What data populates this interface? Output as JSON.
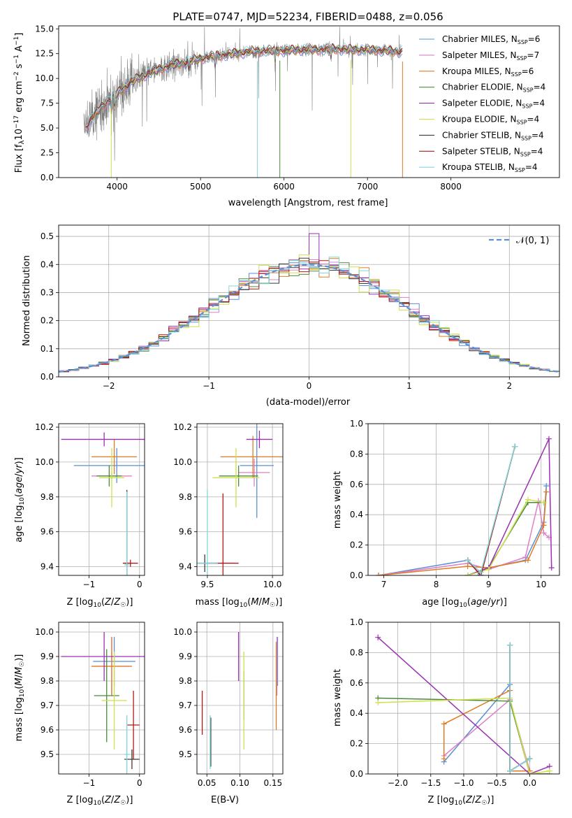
{
  "colors": {
    "Chabrier MILES": "#5b8fd6",
    "Salpeter MILES": "#e07fc7",
    "Kroupa MILES": "#e07b22",
    "Chabrier ELODIE": "#4b8a3c",
    "Salpeter ELODIE": "#9a30b0",
    "Kroupa ELODIE": "#cfe04a",
    "Chabrier STELIB": "#3a3a3a",
    "Salpeter STELIB": "#b01818",
    "Kroupa STELIB": "#7fd7dc",
    "data": "#808080",
    "normal": "#5b8fd6",
    "grid": "#b0b0b0"
  },
  "chart_data": [
    {
      "id": "spectrum",
      "type": "line",
      "title": "PLATE=0747, MJD=52234, FIBERID=0488, z=0.056",
      "xlabel": "wavelength [Angstrom, rest frame]",
      "ylabel": "Flux [f_λ 10^-17 erg cm^-2 s^-1 A^-1]",
      "xlim": [
        3300,
        9300
      ],
      "ylim": [
        0,
        15.3
      ],
      "xticks": [
        4000,
        5000,
        6000,
        7000,
        8000
      ],
      "xtick_labels": [
        "4000",
        "5000",
        "6000",
        "7000",
        "8000"
      ],
      "yticks": [
        0,
        2.5,
        5,
        7.5,
        10,
        12.5,
        15
      ],
      "ytick_labels": [
        "0.0",
        "2.5",
        "5.0",
        "7.5",
        "10.0",
        "12.5",
        "15.0"
      ],
      "grid": false,
      "legend_position": "right",
      "continuum": [
        [
          3600,
          4.8
        ],
        [
          3700,
          6.0
        ],
        [
          3800,
          7.0
        ],
        [
          3900,
          7.8
        ],
        [
          4000,
          8.5
        ],
        [
          4200,
          9.8
        ],
        [
          4400,
          10.6
        ],
        [
          4600,
          11.2
        ],
        [
          4800,
          11.6
        ],
        [
          5000,
          12.0
        ],
        [
          5200,
          12.3
        ],
        [
          5400,
          12.5
        ],
        [
          5600,
          12.7
        ],
        [
          5800,
          12.8
        ],
        [
          6000,
          12.8
        ],
        [
          6200,
          12.9
        ],
        [
          6400,
          12.9
        ],
        [
          6600,
          13.0
        ],
        [
          6800,
          12.9
        ],
        [
          7000,
          12.9
        ],
        [
          7200,
          12.8
        ],
        [
          7400,
          12.7
        ]
      ],
      "legend": [
        {
          "label": "Chabrier MILES",
          "nssp": "6",
          "color_key": "Chabrier MILES"
        },
        {
          "label": "Salpeter MILES",
          "nssp": "7",
          "color_key": "Salpeter MILES"
        },
        {
          "label": "Kroupa MILES",
          "nssp": "6",
          "color_key": "Kroupa MILES"
        },
        {
          "label": "Chabrier ELODIE",
          "nssp": "4",
          "color_key": "Chabrier ELODIE"
        },
        {
          "label": "Salpeter ELODIE",
          "nssp": "4",
          "color_key": "Salpeter ELODIE"
        },
        {
          "label": "Kroupa ELODIE",
          "nssp": "4",
          "color_key": "Kroupa ELODIE"
        },
        {
          "label": "Chabrier STELIB",
          "nssp": "4",
          "color_key": "Chabrier STELIB"
        },
        {
          "label": "Salpeter STELIB",
          "nssp": "4",
          "color_key": "Salpeter STELIB"
        },
        {
          "label": "Kroupa STELIB",
          "nssp": "4",
          "color_key": "Kroupa STELIB"
        }
      ]
    },
    {
      "id": "residuals",
      "type": "line",
      "xlabel": "(data-model)/error",
      "ylabel": "Normed distribution",
      "xlim": [
        -2.5,
        2.5
      ],
      "ylim": [
        0,
        0.54
      ],
      "xticks": [
        -2,
        -1,
        0,
        1,
        2
      ],
      "xtick_labels": [
        "−2",
        "−1",
        "0",
        "1",
        "2"
      ],
      "yticks": [
        0,
        0.1,
        0.2,
        0.3,
        0.4,
        0.5
      ],
      "ytick_labels": [
        "0.0",
        "0.1",
        "0.2",
        "0.3",
        "0.4",
        "0.5"
      ],
      "grid": true,
      "legend_position": "top-right",
      "legend": [
        {
          "label": "𝒩(0, 1)",
          "color_key": "normal"
        }
      ],
      "bin_width": 0.1,
      "peak_value": 0.399
    },
    {
      "id": "age_vs_Z",
      "type": "scatter",
      "xlabel": "Z [log10(Z/Z☉)]",
      "ylabel": "age [log10(age/yr)]",
      "xlim": [
        -1.6,
        0.1
      ],
      "ylim": [
        9.35,
        10.22
      ],
      "xticks": [
        -1,
        0
      ],
      "xtick_labels": [
        "−1",
        "0"
      ],
      "yticks": [
        9.4,
        9.6,
        9.8,
        10.0,
        10.2
      ],
      "ytick_labels": [
        "9.4",
        "9.6",
        "9.8",
        "10.0",
        "10.2"
      ],
      "grid": true,
      "points": [
        {
          "model": "Chabrier MILES",
          "x": -0.45,
          "xerr": 0.85,
          "y": 9.98,
          "yerr": 0.1
        },
        {
          "model": "Salpeter MILES",
          "x": -0.55,
          "xerr": 0.4,
          "y": 9.92,
          "yerr": 0.02
        },
        {
          "model": "Kroupa MILES",
          "x": -0.5,
          "xerr": 0.45,
          "y": 10.03,
          "yerr": 0.1
        },
        {
          "model": "Chabrier ELODIE",
          "x": -0.6,
          "xerr": 0.25,
          "y": 9.92,
          "yerr": 0.06
        },
        {
          "model": "Salpeter ELODIE",
          "x": -0.7,
          "xerr": 0.85,
          "y": 10.13,
          "yerr": 0.04
        },
        {
          "model": "Kroupa ELODIE",
          "x": -0.55,
          "xerr": 0.25,
          "y": 9.91,
          "yerr": 0.17
        },
        {
          "model": "Chabrier STELIB",
          "x": -0.25,
          "xerr": 0.05,
          "y": 9.42,
          "yerr": 0.42
        },
        {
          "model": "Salpeter STELIB",
          "x": -0.18,
          "xerr": 0.15,
          "y": 9.42,
          "yerr": 0.02
        },
        {
          "model": "Kroupa STELIB",
          "x": -0.25,
          "xerr": 0.05,
          "y": 9.41,
          "yerr": 0.42
        }
      ]
    },
    {
      "id": "age_vs_mass",
      "type": "scatter",
      "xlabel": "mass [log10(M/M☉)]",
      "xlim": [
        9.42,
        10.08
      ],
      "ylim": [
        9.35,
        10.22
      ],
      "xticks": [
        9.5,
        10.0
      ],
      "xtick_labels": [
        "9.5",
        "10.0"
      ],
      "yticks": [
        9.4,
        9.6,
        9.8,
        10.0,
        10.2
      ],
      "ytick_labels": [
        "9.4",
        "9.6",
        "9.8",
        "10.0",
        "10.2"
      ],
      "grid": true,
      "points": [
        {
          "model": "Chabrier MILES",
          "x": 9.88,
          "xerr": 0.13,
          "y": 9.98,
          "yerr": 0.3
        },
        {
          "model": "Salpeter MILES",
          "x": 9.86,
          "xerr": 0.12,
          "y": 9.94,
          "yerr": 0.08
        },
        {
          "model": "Kroupa MILES",
          "x": 9.85,
          "xerr": 0.25,
          "y": 10.03,
          "yerr": 0.12
        },
        {
          "model": "Chabrier ELODIE",
          "x": 9.74,
          "xerr": 0.15,
          "y": 9.92,
          "yerr": 0.06
        },
        {
          "model": "Salpeter ELODIE",
          "x": 9.9,
          "xerr": 0.1,
          "y": 10.13,
          "yerr": 0.05
        },
        {
          "model": "Kroupa ELODIE",
          "x": 9.72,
          "xerr": 0.18,
          "y": 9.91,
          "yerr": 0.17
        },
        {
          "model": "Chabrier STELIB",
          "x": 9.48,
          "xerr": 0.1,
          "y": 9.42,
          "yerr": 0.05
        },
        {
          "model": "Salpeter STELIB",
          "x": 9.62,
          "xerr": 0.12,
          "y": 9.42,
          "yerr": 0.4
        },
        {
          "model": "Kroupa STELIB",
          "x": 9.5,
          "xerr": 0.08,
          "y": 9.42,
          "yerr": 0.42
        }
      ]
    },
    {
      "id": "massweight_vs_age",
      "type": "line",
      "xlabel": "age  [log10(age/yr)]",
      "ylabel": "mass weight",
      "xlim": [
        6.7,
        10.35
      ],
      "ylim": [
        0,
        1.0
      ],
      "xticks": [
        7,
        8,
        9,
        10
      ],
      "xtick_labels": [
        "7",
        "8",
        "9",
        "10"
      ],
      "yticks": [
        0,
        0.2,
        0.4,
        0.6,
        0.8,
        1.0
      ],
      "ytick_labels": [
        "0.0",
        "0.2",
        "0.4",
        "0.6",
        "0.8",
        "1.0"
      ],
      "grid": true,
      "series": [
        {
          "model": "Chabrier MILES",
          "x": [
            6.9,
            8.6,
            8.8,
            9.0,
            9.7,
            10.05,
            10.1
          ],
          "y": [
            0.0,
            0.1,
            0.02,
            0.05,
            0.1,
            0.35,
            0.59
          ]
        },
        {
          "model": "Salpeter MILES",
          "x": [
            6.9,
            8.6,
            9.0,
            9.7,
            9.95,
            10.05,
            10.15
          ],
          "y": [
            0.0,
            0.08,
            0.04,
            0.12,
            0.49,
            0.28,
            0.25
          ]
        },
        {
          "model": "Kroupa MILES",
          "x": [
            6.9,
            8.6,
            9.0,
            9.75,
            10.05,
            10.1
          ],
          "y": [
            0.0,
            0.06,
            0.05,
            0.1,
            0.33,
            0.55
          ]
        },
        {
          "model": "Chabrier ELODIE",
          "x": [
            8.6,
            9.0,
            9.75,
            10.05
          ],
          "y": [
            0.0,
            0.05,
            0.48,
            0.48
          ]
        },
        {
          "model": "Salpeter ELODIE",
          "x": [
            8.6,
            9.0,
            10.15,
            10.2
          ],
          "y": [
            0.0,
            0.05,
            0.9,
            0.05
          ]
        },
        {
          "model": "Kroupa ELODIE",
          "x": [
            8.6,
            9.0,
            9.75,
            10.05
          ],
          "y": [
            0.0,
            0.04,
            0.5,
            0.48
          ]
        },
        {
          "model": "Chabrier STELIB",
          "x": [
            8.6,
            8.85,
            9.5
          ],
          "y": [
            0.1,
            0.0,
            0.85
          ]
        },
        {
          "model": "Salpeter STELIB",
          "x": [
            8.6,
            8.85,
            9.5
          ],
          "y": [
            0.1,
            0.0,
            0.85
          ]
        },
        {
          "model": "Kroupa STELIB",
          "x": [
            8.6,
            8.85,
            9.5
          ],
          "y": [
            0.1,
            0.02,
            0.85
          ]
        }
      ]
    },
    {
      "id": "mass_vs_Z",
      "type": "scatter",
      "xlabel": "Z [log10(Z/Z☉)]",
      "ylabel": "mass [log10(M/M☉)]",
      "xlim": [
        -1.6,
        0.1
      ],
      "ylim": [
        9.42,
        10.04
      ],
      "xticks": [
        -1,
        0
      ],
      "xtick_labels": [
        "−1",
        "0"
      ],
      "yticks": [
        9.5,
        9.6,
        9.7,
        9.8,
        9.9,
        10.0
      ],
      "ytick_labels": [
        "9.5",
        "9.6",
        "9.7",
        "9.8",
        "9.9",
        "10.0"
      ],
      "grid": true,
      "points": [
        {
          "model": "Chabrier MILES",
          "x": -0.5,
          "xerr": 0.42,
          "y": 9.88,
          "yerr": 0.1
        },
        {
          "model": "Salpeter MILES",
          "x": -0.55,
          "xerr": 0.4,
          "y": 9.86,
          "yerr": 0.12
        },
        {
          "model": "Kroupa MILES",
          "x": -0.55,
          "xerr": 0.4,
          "y": 9.86,
          "yerr": 0.12
        },
        {
          "model": "Chabrier ELODIE",
          "x": -0.65,
          "xerr": 0.25,
          "y": 9.74,
          "yerr": 0.19
        },
        {
          "model": "Salpeter ELODIE",
          "x": -0.7,
          "xerr": 0.85,
          "y": 9.9,
          "yerr": 0.1
        },
        {
          "model": "Kroupa ELODIE",
          "x": -0.5,
          "xerr": 0.25,
          "y": 9.72,
          "yerr": 0.2
        },
        {
          "model": "Chabrier STELIB",
          "x": -0.15,
          "xerr": 0.15,
          "y": 9.48,
          "yerr": 0.04
        },
        {
          "model": "Salpeter STELIB",
          "x": -0.12,
          "xerr": 0.12,
          "y": 9.62,
          "yerr": 0.14
        },
        {
          "model": "Kroupa STELIB",
          "x": -0.25,
          "xerr": 0.05,
          "y": 9.5,
          "yerr": 0.16
        }
      ]
    },
    {
      "id": "mass_vs_ebv",
      "type": "scatter",
      "xlabel": "E(B-V)",
      "xlim": [
        0.035,
        0.165
      ],
      "ylim": [
        9.42,
        10.04
      ],
      "xticks": [
        0.05,
        0.1,
        0.15
      ],
      "xtick_labels": [
        "0.05",
        "0.10",
        "0.15"
      ],
      "yticks": [
        9.5,
        9.6,
        9.7,
        9.8,
        9.9,
        10.0
      ],
      "ytick_labels": [
        "9.5",
        "9.6",
        "9.7",
        "9.8",
        "9.9",
        "10.0"
      ],
      "grid": true,
      "points": [
        {
          "model": "Chabrier MILES",
          "x": 0.157,
          "xerr": 0,
          "y": 9.88,
          "yerr": 0.1
        },
        {
          "model": "Salpeter MILES",
          "x": 0.156,
          "xerr": 0,
          "y": 9.86,
          "yerr": 0.12
        },
        {
          "model": "Kroupa MILES",
          "x": 0.155,
          "xerr": 0,
          "y": 9.78,
          "yerr": 0.18
        },
        {
          "model": "Chabrier ELODIE",
          "x": 0.106,
          "xerr": 0,
          "y": 9.74,
          "yerr": 0.1
        },
        {
          "model": "Salpeter ELODIE",
          "x": 0.098,
          "xerr": 0,
          "y": 9.9,
          "yerr": 0.1
        },
        {
          "model": "Kroupa ELODIE",
          "x": 0.106,
          "xerr": 0,
          "y": 9.72,
          "yerr": 0.2
        },
        {
          "model": "Chabrier STELIB",
          "x": 0.056,
          "xerr": 0,
          "y": 9.55,
          "yerr": 0.1
        },
        {
          "model": "Salpeter STELIB",
          "x": 0.043,
          "xerr": 0,
          "y": 9.67,
          "yerr": 0.09
        },
        {
          "model": "Kroupa STELIB",
          "x": 0.055,
          "xerr": 0,
          "y": 9.55,
          "yerr": 0.11
        }
      ]
    },
    {
      "id": "massweight_vs_Z",
      "type": "line",
      "xlabel": "Z [log10(Z/Z☉)]",
      "ylabel": "mass weight",
      "xlim": [
        -2.45,
        0.45
      ],
      "ylim": [
        0,
        1.0
      ],
      "xticks": [
        -2.0,
        -1.5,
        -1.0,
        -0.5,
        0.0
      ],
      "xtick_labels": [
        "−2.0",
        "−1.5",
        "−1.0",
        "−0.5",
        "0.0"
      ],
      "yticks": [
        0,
        0.2,
        0.4,
        0.6,
        0.8,
        1.0
      ],
      "ytick_labels": [
        "0.0",
        "0.2",
        "0.4",
        "0.6",
        "0.8",
        "1.0"
      ],
      "grid": true,
      "series": [
        {
          "model": "Chabrier MILES",
          "x": [
            -1.3,
            -0.3,
            -0.3,
            0.0
          ],
          "y": [
            0.08,
            0.59,
            0.02,
            0.1
          ]
        },
        {
          "model": "Salpeter MILES",
          "x": [
            -1.3,
            -0.3,
            0.0
          ],
          "y": [
            0.12,
            0.49,
            0.02
          ]
        },
        {
          "model": "Kroupa MILES",
          "x": [
            -1.3,
            -1.3,
            -0.3,
            -0.3,
            0.0
          ],
          "y": [
            0.1,
            0.33,
            0.55,
            0.02,
            0.02
          ]
        },
        {
          "model": "Chabrier ELODIE",
          "x": [
            -2.3,
            -0.3,
            0.0,
            0.3
          ],
          "y": [
            0.5,
            0.48,
            0.0,
            0.0
          ]
        },
        {
          "model": "Salpeter ELODIE",
          "x": [
            -2.3,
            0.0,
            0.3
          ],
          "y": [
            0.9,
            0.0,
            0.05
          ]
        },
        {
          "model": "Kroupa ELODIE",
          "x": [
            -2.3,
            -0.3,
            0.0,
            0.3
          ],
          "y": [
            0.47,
            0.5,
            0.0,
            0.02
          ]
        },
        {
          "model": "Chabrier STELIB",
          "x": [
            -0.3,
            -0.3,
            0.0
          ],
          "y": [
            0.85,
            0.02,
            0.1
          ]
        },
        {
          "model": "Salpeter STELIB",
          "x": [
            -0.3,
            -0.3,
            0.0
          ],
          "y": [
            0.85,
            0.02,
            0.1
          ]
        },
        {
          "model": "Kroupa STELIB",
          "x": [
            -0.3,
            -0.3,
            0.0
          ],
          "y": [
            0.85,
            0.02,
            0.1
          ]
        }
      ]
    }
  ]
}
